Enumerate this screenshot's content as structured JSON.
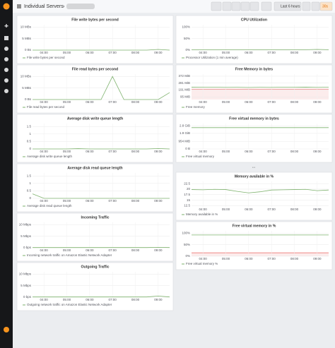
{
  "header": {
    "title": "Individual Servers",
    "time_range": "Last 6 hours",
    "refresh": "30s"
  },
  "x": [
    3.5,
    4,
    4.5,
    5,
    5.5,
    6,
    6.5,
    7,
    7.5,
    8,
    8.5,
    9,
    9.5
  ],
  "xlim": [
    3.5,
    9.5
  ],
  "xticks": [
    {
      "value": 4,
      "label": "04:00"
    },
    {
      "value": 5,
      "label": "05:00"
    },
    {
      "value": 6,
      "label": "06:00"
    },
    {
      "value": 7,
      "label": "07:00"
    },
    {
      "value": 8,
      "label": "08:00"
    },
    {
      "value": 9,
      "label": "09:00"
    }
  ],
  "left_panels": [
    {
      "type": "line",
      "title": "File write bytes per second",
      "ylim": [
        0,
        11
      ],
      "yticks": [
        {
          "value": 10,
          "label": "10 MBs"
        },
        {
          "value": 5,
          "label": "5 MBs"
        },
        {
          "value": 0,
          "label": "0 Bs"
        }
      ],
      "series": [
        {
          "name": "File write bytes per second",
          "color": "#7eb26d",
          "values": [
            0,
            0,
            0,
            0,
            0,
            0,
            0,
            0,
            0,
            0,
            0,
            0.3,
            0
          ]
        }
      ]
    },
    {
      "type": "line",
      "title": "File read bytes per second",
      "ylim": [
        0,
        11
      ],
      "yticks": [
        {
          "value": 10,
          "label": "10 MBs"
        },
        {
          "value": 5,
          "label": "5 MBs"
        },
        {
          "value": 0,
          "label": "0 Bs"
        }
      ],
      "series": [
        {
          "name": "File read bytes per second",
          "color": "#7eb26d",
          "values": [
            0,
            0,
            0,
            0,
            0,
            0,
            0,
            10,
            0,
            0,
            0,
            0,
            3
          ]
        }
      ]
    },
    {
      "type": "line",
      "title": "Average disk write queue length",
      "ylim": [
        0,
        1.7
      ],
      "yticks": [
        {
          "value": 1.5,
          "label": "1.5"
        },
        1,
        0.5,
        0
      ],
      "series": [
        {
          "name": "Average disk write queue length",
          "color": "#7eb26d",
          "values": [
            0,
            0,
            0,
            0,
            0.02,
            0,
            0,
            0,
            0,
            0,
            0,
            0.03,
            0
          ]
        }
      ]
    },
    {
      "type": "line",
      "title": "Average disk read queue length",
      "ylim": [
        0,
        1.7
      ],
      "yticks": [
        {
          "value": 1.5,
          "label": "1.5"
        },
        1,
        0.5,
        0
      ],
      "series": [
        {
          "name": "Average disk read queue length",
          "color": "#7eb26d",
          "values": [
            0.3,
            0,
            0,
            0,
            0,
            0,
            0,
            0,
            0,
            0,
            0,
            0,
            0
          ]
        }
      ]
    },
    {
      "type": "line",
      "title": "Incoming Traffic",
      "ylim": [
        0,
        11
      ],
      "yticks": [
        {
          "value": 10,
          "label": "10 Mbps"
        },
        {
          "value": 5,
          "label": "5 Mbps"
        },
        {
          "value": 0,
          "label": "0 bps"
        }
      ],
      "series": [
        {
          "name": "Incoming network traffic on Amazon Elastic Network Adapter",
          "color": "#7eb26d",
          "values": [
            0.1,
            0.1,
            0.1,
            0.1,
            0.1,
            0.1,
            0.1,
            0.1,
            0.1,
            0.1,
            0.1,
            0.2,
            0.1
          ]
        }
      ]
    },
    {
      "type": "line",
      "title": "Outgoing Traffic",
      "ylim": [
        0,
        11
      ],
      "yticks": [
        {
          "value": 10,
          "label": "10 Mbps"
        },
        {
          "value": 5,
          "label": "5 Mbps"
        },
        {
          "value": 0,
          "label": "0 bps"
        }
      ],
      "series": [
        {
          "name": "Outgoing network traffic on Amazon Elastic Network Adapter",
          "color": "#7eb26d",
          "values": [
            0.1,
            0.1,
            0.1,
            0.1,
            0.1,
            0.1,
            0.1,
            0.1,
            0.1,
            0.1,
            0.1,
            0.5,
            0.1
          ]
        }
      ]
    }
  ],
  "collapsed_row": "...",
  "right_panels": [
    {
      "type": "line",
      "title": "CPU Utilization",
      "ylim": [
        0,
        110
      ],
      "yticks": [
        {
          "value": 100,
          "label": "100%"
        },
        {
          "value": 50,
          "label": "50%"
        },
        {
          "value": 0,
          "label": "0%"
        }
      ],
      "series": [
        {
          "name": "Processor Utilization (1 min average)",
          "color": "#7eb26d",
          "values": [
            2,
            2,
            2,
            2,
            2,
            2,
            2,
            2,
            2,
            2,
            2,
            3,
            2
          ]
        }
      ]
    },
    {
      "type": "line",
      "title": "Free Memory in bytes",
      "ylim": [
        60,
        400
      ],
      "threshold": 200,
      "yticks": [
        {
          "value": 372,
          "label": "372 MiB"
        },
        {
          "value": 281,
          "label": "281 MiB"
        },
        {
          "value": 191,
          "label": "191 MiB"
        },
        {
          "value": 95,
          "label": "95 MiB"
        }
      ],
      "series": [
        {
          "name": "Free memory",
          "color": "#7eb26d",
          "values": [
            226,
            224,
            225,
            223,
            224,
            222,
            224,
            223,
            225,
            224,
            226,
            223,
            225
          ]
        }
      ]
    },
    {
      "type": "line",
      "title": "Free virtual memory in bytes",
      "ylim": [
        0,
        3.1
      ],
      "yticks": [
        {
          "value": 2.8,
          "label": "2.8 GiB"
        },
        {
          "value": 1.9,
          "label": "1.9 GiB"
        },
        {
          "value": 0.93,
          "label": "954 MiB"
        },
        {
          "value": 0,
          "label": "0 B"
        }
      ],
      "series": [
        {
          "name": "Free virtual memory",
          "color": "#7eb26d",
          "values": [
            2.6,
            2.6,
            2.6,
            2.6,
            2.6,
            2.6,
            2.6,
            2.6,
            2.6,
            2.6,
            2.6,
            2.6,
            2.6
          ]
        }
      ]
    },
    {
      "type": "line",
      "title": "Memory available in %",
      "ylim": [
        12,
        23.5
      ],
      "yticks": [
        22.5,
        20,
        17.5,
        15,
        12.5
      ],
      "series": [
        {
          "name": "Memory available in %",
          "color": "#7eb26d",
          "values": [
            19.8,
            19.7,
            19.9,
            19.8,
            19,
            18.3,
            18.8,
            19.6,
            19.7,
            19.8,
            19.9,
            19.3,
            19.6
          ]
        }
      ]
    },
    {
      "type": "line",
      "title": "Free virtual memory in %",
      "ylim": [
        0,
        110
      ],
      "threshold": 15,
      "yticks": [
        {
          "value": 100,
          "label": "100%"
        },
        {
          "value": 50,
          "label": "50%"
        },
        {
          "value": 0,
          "label": "0%"
        }
      ],
      "series": [
        {
          "name": "Free virtual memory %",
          "color": "#7eb26d",
          "values": [
            92,
            92,
            92,
            92,
            92,
            92,
            92,
            92,
            92,
            92,
            92,
            92,
            92
          ]
        }
      ]
    }
  ]
}
